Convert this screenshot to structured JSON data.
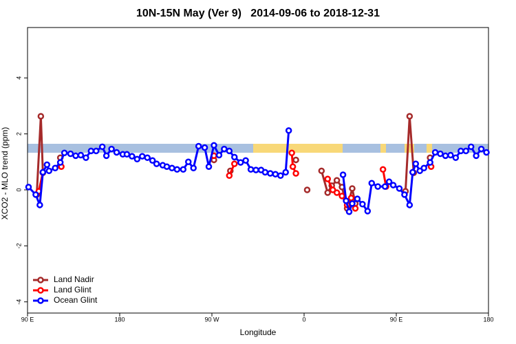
{
  "chart_data": {
    "type": "line",
    "title": "10N-15N May (Ver 9)   2014-09-06 to 2018-12-31",
    "x_label": "Longitude",
    "y_label": "XCO2 - MLO trend (ppm)",
    "xlim": [
      90,
      540
    ],
    "ylim": [
      -4.4,
      5.8
    ],
    "xticks": [
      {
        "value": 90,
        "label": "90 E"
      },
      180,
      {
        "value": 270,
        "label": "90 W"
      },
      {
        "value": 360,
        "label": "0"
      },
      {
        "value": 450,
        "label": "90 E"
      },
      {
        "value": 540,
        "label": "180"
      }
    ],
    "yticks": [
      -4,
      -2,
      0,
      2,
      4
    ],
    "legend": "bottom-left",
    "series": [
      {
        "name": "Land Nadir",
        "color": "#a52a2a",
        "x": [
          99,
          103,
          105,
          110,
          122,
          200,
          272,
          280,
          288,
          320,
          352,
          358,
          363,
          370,
          377,
          383,
          387,
          392,
          397,
          402,
          407,
          410,
          430,
          459,
          463,
          467,
          475,
          483
        ],
        "values": [
          -0.17,
          2.63,
          0.61,
          null,
          1.15,
          null,
          1.07,
          null,
          0.68,
          null,
          1.07,
          null,
          0,
          null,
          0.68,
          -0.1,
          0.15,
          0.34,
          0.1,
          -0.66,
          0.05,
          -0.49,
          null,
          -0.05,
          2.63,
          0.61,
          null,
          1.15
        ]
      },
      {
        "name": "Land Glint",
        "color": "#ff0000",
        "x": [
          101,
          105,
          110,
          123,
          200,
          272,
          280,
          287,
          292,
          320,
          348,
          349,
          352,
          365,
          383,
          388,
          392,
          397,
          402,
          406,
          410,
          420,
          437,
          440,
          450,
          466,
          475,
          484
        ],
        "values": [
          -0.05,
          0.63,
          null,
          0.83,
          null,
          1.22,
          null,
          0.51,
          0.93,
          null,
          1.32,
          0.83,
          0.59,
          null,
          0.39,
          0,
          -0.1,
          -0.22,
          -0.54,
          -0.29,
          -0.66,
          null,
          0.73,
          0.12,
          null,
          0.63,
          null,
          0.83
        ]
      },
      {
        "name": "Ocean Glint",
        "color": "#0000ff",
        "x": [
          91,
          98,
          102,
          105,
          109,
          111,
          117,
          122,
          126,
          132,
          137,
          142,
          147,
          152,
          157,
          163,
          167,
          172,
          177,
          183,
          187,
          192,
          197,
          202,
          207,
          212,
          216,
          222,
          226,
          231,
          236,
          242,
          247,
          252,
          257,
          263,
          267,
          272,
          277,
          282,
          287,
          292,
          298,
          303,
          308,
          313,
          318,
          322,
          327,
          332,
          337,
          342,
          345,
          370,
          398,
          401,
          404,
          407,
          412,
          417,
          422,
          426,
          432,
          439,
          443,
          447,
          453,
          458,
          463,
          466,
          469,
          473,
          477,
          483,
          488,
          493,
          498,
          503,
          508,
          513,
          518,
          523,
          528,
          533,
          538
        ],
        "values": [
          0.1,
          -0.17,
          -0.54,
          0.63,
          0.9,
          0.68,
          0.78,
          0.98,
          1.32,
          1.29,
          1.22,
          1.24,
          1.15,
          1.39,
          1.39,
          1.54,
          1.22,
          1.46,
          1.34,
          1.27,
          1.27,
          1.2,
          1.1,
          1.2,
          1.15,
          1.05,
          0.93,
          0.88,
          0.83,
          0.78,
          0.73,
          0.73,
          1.0,
          0.78,
          1.56,
          1.51,
          0.83,
          1.59,
          1.24,
          1.46,
          1.39,
          1.17,
          0.98,
          1.05,
          0.73,
          0.71,
          0.71,
          0.63,
          0.59,
          0.56,
          0.51,
          0.63,
          2.12,
          null,
          0.54,
          -0.39,
          -0.78,
          -0.49,
          -0.32,
          -0.51,
          -0.76,
          0.24,
          0.12,
          0.12,
          0.29,
          0.17,
          0.05,
          -0.17,
          -0.54,
          0.63,
          0.93,
          0.68,
          0.78,
          0.98,
          1.34,
          1.29,
          1.22,
          1.24,
          1.15,
          1.39,
          1.39,
          1.54,
          1.22,
          1.46,
          1.34
        ]
      }
    ]
  }
}
